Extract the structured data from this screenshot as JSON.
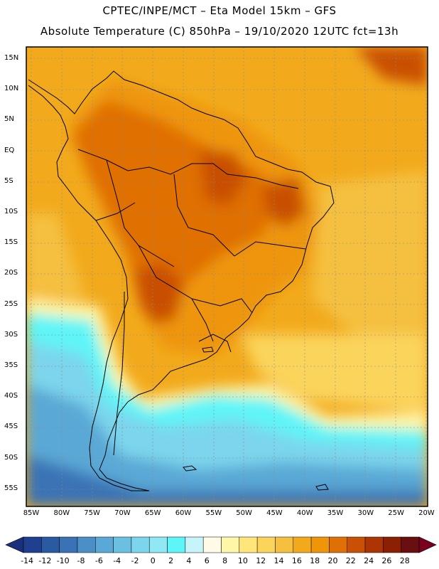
{
  "header": {
    "line1": "CPTEC/INPE/MCT  –   Eta Model 15km  –  GFS",
    "line2": "Absolute Temperature (C) 850hPa – 19/10/2020 12UTC fct=13h"
  },
  "map": {
    "region": "South America",
    "lat_labels": [
      "15N",
      "10N",
      "5N",
      "EQ",
      "5S",
      "10S",
      "15S",
      "20S",
      "25S",
      "30S",
      "35S",
      "40S",
      "45S",
      "50S",
      "55S"
    ],
    "lon_labels": [
      "85W",
      "80W",
      "75W",
      "70W",
      "65W",
      "60W",
      "55W",
      "50W",
      "45W",
      "40W",
      "35W",
      "30W",
      "25W",
      "20W"
    ]
  },
  "colorbar": {
    "labels": [
      "-14",
      "-12",
      "-10",
      "-8",
      "-6",
      "-4",
      "-2",
      "0",
      "2",
      "4",
      "6",
      "8",
      "10",
      "12",
      "14",
      "16",
      "18",
      "20",
      "22",
      "24",
      "26",
      "28"
    ],
    "colors": [
      "#1f3f8f",
      "#2a5aa2",
      "#3a73b5",
      "#4a8fc5",
      "#5aa8d5",
      "#6bc0e2",
      "#7cd5ec",
      "#8fe8f4",
      "#5ef5f8",
      "#c7f4fb",
      "#fffbe6",
      "#fff6a8",
      "#ffe57a",
      "#fbd45b",
      "#f5c040",
      "#f2aa1c",
      "#ee9508",
      "#e07006",
      "#c95004",
      "#ad3504",
      "#8c2004",
      "#6a0f10"
    ],
    "low_arrow_color": "#1b2f7a",
    "high_arrow_color": "#7a0020"
  }
}
